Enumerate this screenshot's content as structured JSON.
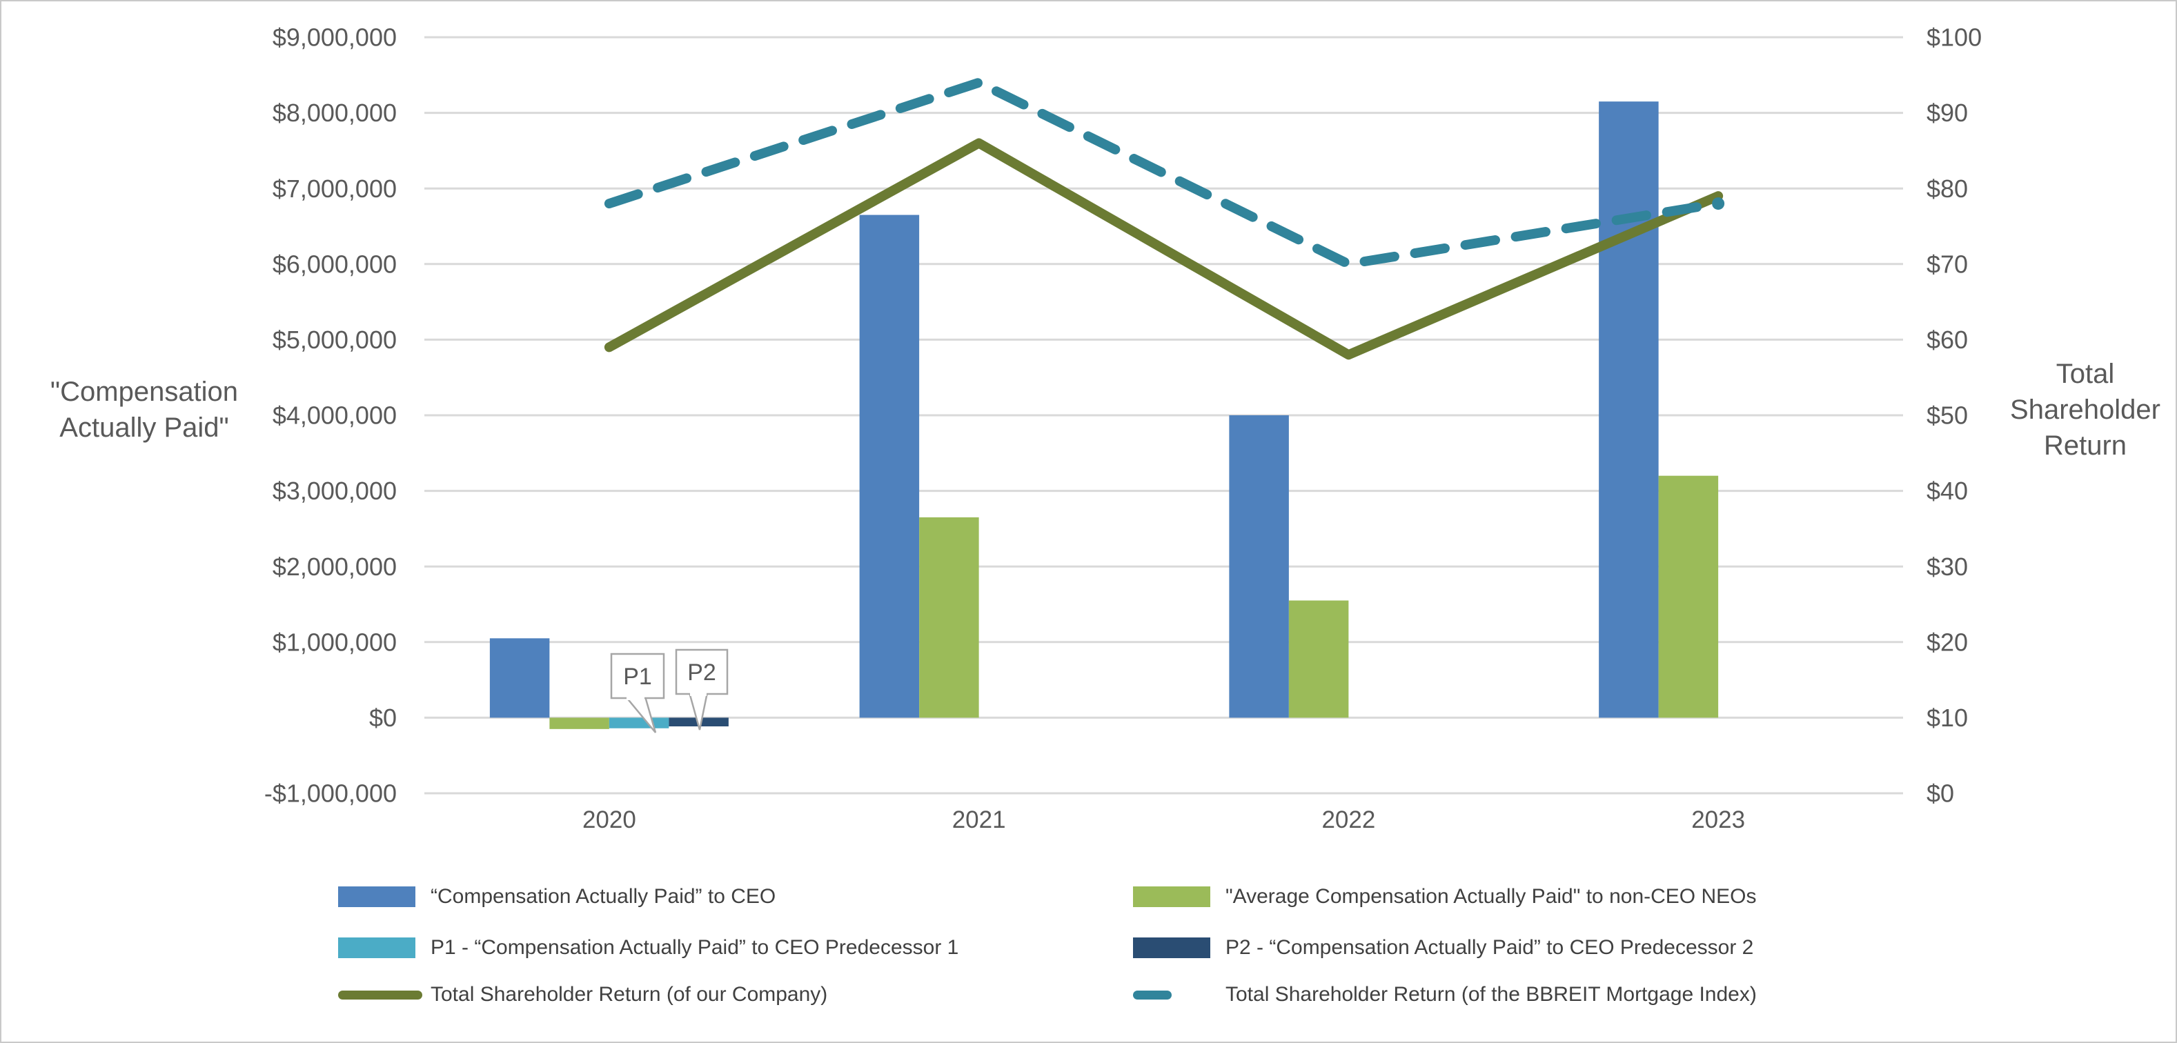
{
  "figure": {
    "background": "#ffffff",
    "border_color": "#c9c9c9",
    "gridline_color": "#d9d9d9",
    "tick_text_color": "#595959",
    "legend_text_color": "#404040"
  },
  "chart_data": {
    "type": "bar",
    "subtype": "clustered-bar-with-lines-combo",
    "categories": [
      "2020",
      "2021",
      "2022",
      "2023"
    ],
    "bar_series": [
      {
        "name": "“Compensation Actually Paid” to CEO",
        "color": "#4f81bd",
        "axis": "left",
        "values": [
          1050000,
          6650000,
          4000000,
          8150000
        ]
      },
      {
        "name": "\"Average Compensation Actually Paid\" to non-CEO NEOs",
        "color": "#9bbb59",
        "axis": "left",
        "values": [
          -150000,
          2650000,
          1550000,
          3200000
        ]
      },
      {
        "name": "P1 - “Compensation Actually Paid” to CEO Predecessor 1",
        "color": "#4bacc6",
        "axis": "left",
        "values": [
          -140000,
          null,
          null,
          null
        ]
      },
      {
        "name": "P2 - “Compensation Actually Paid” to CEO Predecessor 2",
        "color": "#2a4d73",
        "axis": "left",
        "values": [
          -115000,
          null,
          null,
          null
        ]
      }
    ],
    "line_series": [
      {
        "name": "Total Shareholder Return (of our Company)",
        "color": "#6b7b33",
        "style": "solid",
        "axis": "right",
        "values": [
          59,
          86,
          58,
          79
        ]
      },
      {
        "name": "Total Shareholder Return (of the BBREIT Mortgage Index)",
        "color": "#31849b",
        "style": "dashed",
        "axis": "right",
        "values": [
          78,
          94,
          70,
          78
        ]
      }
    ],
    "left_axis": {
      "title": "\"Compensation\nActually Paid\"",
      "min": -1000000,
      "max": 9000000,
      "step": 1000000,
      "tick_labels": [
        "$9,000,000",
        "$8,000,000",
        "$7,000,000",
        "$6,000,000",
        "$5,000,000",
        "$4,000,000",
        "$3,000,000",
        "$2,000,000",
        "$1,000,000",
        "$0",
        "-$1,000,000"
      ]
    },
    "right_axis": {
      "title": "Total\nShareholder\nReturn",
      "min": 0,
      "max": 100,
      "step": 10,
      "tick_labels": [
        "$100",
        "$90",
        "$80",
        "$70",
        "$60",
        "$50",
        "$40",
        "$30",
        "$20",
        "$10",
        "$0"
      ]
    },
    "x_axis": {
      "tick_labels": [
        "2020",
        "2021",
        "2022",
        "2023"
      ]
    },
    "grid": "horizontal-only",
    "legend_position": "bottom-two-columns",
    "annotations": [
      {
        "label": "P1",
        "points_to": "CEO Predecessor 1 bar, 2020"
      },
      {
        "label": "P2",
        "points_to": "CEO Predecessor 2 bar, 2020"
      }
    ]
  },
  "legend": {
    "items": [
      {
        "swatch": "bar",
        "bind": "bar_series.0"
      },
      {
        "swatch": "bar",
        "bind": "bar_series.1"
      },
      {
        "swatch": "bar",
        "bind": "bar_series.2"
      },
      {
        "swatch": "bar",
        "bind": "bar_series.3"
      },
      {
        "swatch": "line-solid",
        "bind": "line_series.0"
      },
      {
        "swatch": "line-dashed",
        "bind": "line_series.1"
      }
    ]
  }
}
